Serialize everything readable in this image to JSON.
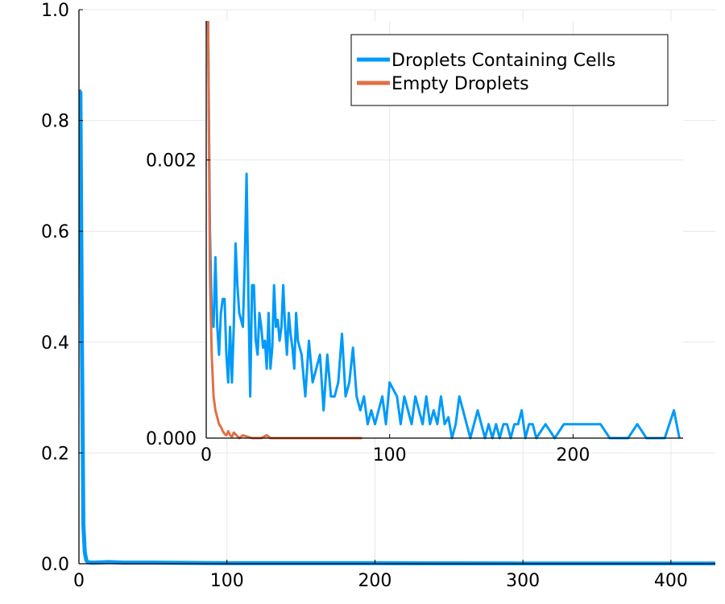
{
  "chart_data": [
    {
      "type": "line",
      "title": "",
      "xlabel": "",
      "ylabel": "",
      "xlim": [
        0,
        430
      ],
      "ylim": [
        0,
        1.0
      ],
      "x_ticks": [
        0,
        100,
        200,
        300,
        400
      ],
      "x_tick_labels": [
        "0",
        "100",
        "200",
        "300",
        "400"
      ],
      "y_ticks": [
        0,
        0.2,
        0.4,
        0.6,
        0.8,
        1.0
      ],
      "y_tick_labels": [
        "0.0",
        "0.2",
        "0.4",
        "0.6",
        "0.8",
        "1.0"
      ],
      "grid": true,
      "series": [
        {
          "name": "Droplets Containing Cells",
          "color": "#009af9",
          "x": [
            0,
            1,
            2,
            3,
            4,
            5,
            6,
            8,
            10,
            20,
            30,
            50,
            100,
            200,
            300,
            430
          ],
          "y": [
            0.855,
            0.85,
            0.4,
            0.07,
            0.02,
            0.006,
            0.003,
            0.002,
            0.002,
            0.003,
            0.002,
            0.002,
            0.001,
            0.001,
            0.0005,
            0.0003
          ]
        }
      ]
    },
    {
      "type": "line",
      "title": "",
      "xlabel": "",
      "ylabel": "",
      "xlim": [
        0,
        260
      ],
      "ylim": [
        0,
        0.003
      ],
      "x_ticks": [
        0,
        100,
        200
      ],
      "x_tick_labels": [
        "0",
        "100",
        "200"
      ],
      "y_ticks": [
        0,
        0.002
      ],
      "y_tick_labels": [
        "0.000",
        "0.002"
      ],
      "grid": true,
      "legend": "top-right",
      "series": [
        {
          "name": "Droplets Containing Cells",
          "color": "#009af9",
          "x": [
            1,
            2,
            3,
            4,
            5,
            6,
            7,
            8,
            9,
            10,
            11,
            12,
            13,
            14,
            15,
            16,
            17,
            18,
            19,
            20,
            21,
            22,
            23,
            24,
            25,
            26,
            27,
            28,
            29,
            30,
            31,
            32,
            33,
            34,
            35,
            36,
            37,
            38,
            39,
            40,
            41,
            42,
            43,
            44,
            45,
            46,
            47,
            48,
            49,
            50,
            52,
            54,
            56,
            58,
            60,
            62,
            64,
            66,
            68,
            70,
            72,
            74,
            76,
            78,
            80,
            82,
            84,
            86,
            88,
            90,
            92,
            94,
            96,
            98,
            100,
            102,
            104,
            106,
            108,
            110,
            112,
            114,
            116,
            118,
            120,
            122,
            124,
            126,
            128,
            130,
            132,
            134,
            136,
            138,
            140,
            142,
            144,
            146,
            148,
            150,
            152,
            154,
            156,
            158,
            160,
            162,
            164,
            166,
            168,
            170,
            172,
            174,
            176,
            178,
            180,
            185,
            190,
            195,
            200,
            205,
            210,
            215,
            220,
            225,
            230,
            235,
            240,
            245,
            250,
            255,
            258
          ],
          "y": [
            0.003,
            0.0015,
            0.0009,
            0.0008,
            0.0013,
            0.0008,
            0.0006,
            0.0009,
            0.001,
            0.001,
            0.0006,
            0.0004,
            0.0008,
            0.0004,
            0.0008,
            0.0014,
            0.0011,
            0.0009,
            0.00085,
            0.0008,
            0.00125,
            0.0019,
            0.001,
            0.0003,
            0.0011,
            0.0011,
            0.0007,
            0.0006,
            0.0009,
            0.0008,
            0.00065,
            0.0007,
            0.0005,
            0.0009,
            0.0005,
            0.00065,
            0.0011,
            0.0008,
            0.00085,
            0.0007,
            0.0008,
            0.0011,
            0.0008,
            0.0006,
            0.0009,
            0.00075,
            0.00065,
            0.0005,
            0.0009,
            0.0007,
            0.0006,
            0.0003,
            0.0007,
            0.0004,
            0.0005,
            0.0006,
            0.0002,
            0.0006,
            0.0003,
            0.0003,
            0.0004,
            0.00075,
            0.0003,
            0.0004,
            0.00065,
            0.0003,
            0.0002,
            0.0003,
            0.0001,
            0.0002,
            0.0001,
            0.0002,
            0.0003,
            0.0001,
            0.0004,
            0.00035,
            0.0003,
            0.0001,
            0.0003,
            0.0002,
            0.0001,
            0.0003,
            0.0002,
            0.0001,
            0.0003,
            0.0001,
            0.0002,
            0.0001,
            0.0003,
            0.0001,
            0.00015,
            0.0,
            0.0001,
            0.0003,
            0.0002,
            0.0001,
            0.0,
            0.0001,
            0.0002,
            0.0001,
            0.0,
            0.0001,
            0.0,
            0.0001,
            0.0,
            0.0001,
            0.0001,
            0.0,
            0.0001,
            0.0001,
            0.0002,
            0.0,
            0.0001,
            0.0001,
            0.0,
            0.0001,
            0.0,
            0.0001,
            0.0001,
            0.0001,
            0.0001,
            0.0001,
            0.0,
            0.0,
            0.0,
            0.0001,
            0.0,
            0.0,
            0.0,
            0.0002,
            0.0
          ]
        },
        {
          "name": "Empty Droplets",
          "color": "#e26f46",
          "x": [
            1,
            2,
            3,
            4,
            5,
            6,
            7,
            8,
            9,
            10,
            11,
            12,
            13,
            14,
            15,
            18,
            20,
            25,
            30,
            33,
            35,
            40,
            50,
            60,
            70,
            80,
            85
          ],
          "y": [
            0.003,
            0.0012,
            0.0006,
            0.0003,
            0.0002,
            0.00015,
            0.0001,
            8e-05,
            5e-05,
            3e-05,
            2e-05,
            5e-05,
            2e-05,
            1e-05,
            4e-05,
            0.0,
            2e-05,
            0.0,
            0.0,
            2e-05,
            0.0,
            0.0,
            0.0,
            0.0,
            0.0,
            0.0,
            0.0
          ]
        }
      ]
    }
  ]
}
